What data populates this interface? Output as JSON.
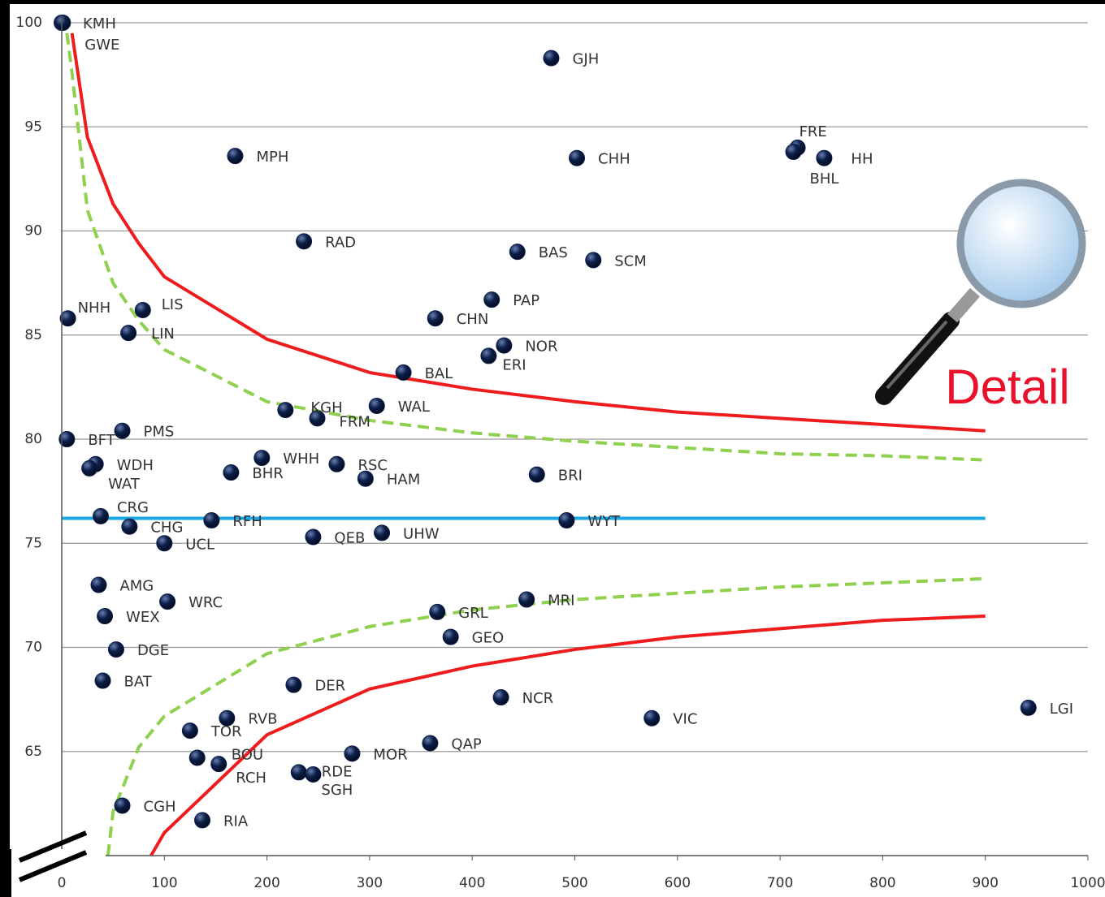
{
  "chart_data": {
    "type": "scatter",
    "annotation": "Detail",
    "xlim": [
      0,
      1000
    ],
    "xticks": [
      0,
      100,
      200,
      300,
      400,
      500,
      600,
      700,
      800,
      900,
      1000
    ],
    "ylim": [
      60,
      100
    ],
    "yticks": [
      65,
      70,
      75,
      80,
      85,
      90,
      95,
      100
    ],
    "grid": true,
    "point_color": "#0c1f4a",
    "labels": [
      "KMH",
      "GWE",
      "GJH",
      "MPH",
      "CHH",
      "FRE",
      "BHL",
      "HH",
      "RAD",
      "BAS",
      "SCM",
      "PAP",
      "NHH",
      "LIS",
      "LIN",
      "CHN",
      "NOR",
      "ERI",
      "BAL",
      "WAL",
      "KGH",
      "FRM",
      "BFT",
      "PMS",
      "WDH",
      "WAT",
      "BHR",
      "WHH",
      "RSC",
      "HAM",
      "BRI",
      "CRG",
      "RFH",
      "CHG",
      "UCL",
      "QEB",
      "UHW",
      "WYT",
      "AMG",
      "WRC",
      "WEX",
      "MRI",
      "GRL",
      "GEO",
      "DGE",
      "BAT",
      "DER",
      "NCR",
      "LGI",
      "VIC",
      "RVB",
      "TOR",
      "BOU",
      "RCH",
      "MOR",
      "QAP",
      "RDE",
      "SGH",
      "CGH",
      "RIA"
    ],
    "x": [
      0,
      1,
      477,
      169,
      502,
      717,
      713,
      743,
      236,
      444,
      518,
      419,
      6,
      79,
      65,
      364,
      431,
      416,
      333,
      307,
      218,
      249,
      5,
      59,
      33,
      27,
      165,
      195,
      268,
      296,
      463,
      38,
      146,
      66,
      100,
      245,
      312,
      492,
      36,
      103,
      42,
      453,
      366,
      379,
      53,
      40,
      226,
      428,
      942,
      575,
      161,
      125,
      132,
      153,
      283,
      359,
      231,
      245,
      59,
      137
    ],
    "values": [
      100,
      100,
      98.3,
      93.6,
      93.5,
      94.0,
      93.8,
      93.5,
      89.5,
      89.0,
      88.6,
      86.7,
      85.8,
      86.2,
      85.1,
      85.8,
      84.5,
      84.0,
      83.2,
      81.6,
      81.4,
      81.0,
      80.0,
      80.4,
      78.8,
      78.6,
      78.4,
      79.1,
      78.8,
      78.1,
      78.3,
      76.3,
      76.1,
      75.8,
      75.0,
      75.3,
      75.5,
      76.1,
      73.0,
      72.2,
      71.5,
      72.3,
      71.7,
      70.5,
      69.9,
      68.4,
      68.2,
      67.6,
      67.1,
      66.6,
      66.6,
      66.0,
      64.7,
      64.4,
      64.9,
      65.4,
      64.0,
      63.9,
      62.4,
      61.7
    ],
    "lines": [
      {
        "color": "#1aa7e6",
        "dashed": false,
        "x": [
          0,
          900
        ],
        "values": [
          76.2,
          76.2
        ]
      },
      {
        "color": "#8fd14f",
        "dashed": true,
        "x": [
          5,
          10,
          25,
          50,
          75,
          100,
          200,
          300,
          400,
          500,
          600,
          700,
          800,
          900
        ],
        "values": [
          99.5,
          97.6,
          91.0,
          87.5,
          85.7,
          84.3,
          81.8,
          80.9,
          80.3,
          79.9,
          79.6,
          79.3,
          79.2,
          79.0
        ]
      },
      {
        "color": "#8fd14f",
        "dashed": true,
        "x": [
          45,
          50,
          75,
          100,
          200,
          300,
          400,
          500,
          600,
          700,
          800,
          900
        ],
        "values": [
          60.0,
          62.1,
          65.2,
          66.7,
          69.7,
          71.0,
          71.8,
          72.3,
          72.6,
          72.9,
          73.1,
          73.3
        ]
      },
      {
        "color": "#ee1c1c",
        "dashed": false,
        "x": [
          10,
          25,
          50,
          75,
          100,
          200,
          300,
          400,
          500,
          600,
          700,
          800,
          900
        ],
        "values": [
          99.5,
          94.5,
          91.3,
          89.4,
          87.8,
          84.8,
          83.2,
          82.4,
          81.8,
          81.3,
          81.0,
          80.7,
          80.4
        ]
      },
      {
        "color": "#ee1c1c",
        "dashed": false,
        "x": [
          87,
          100,
          200,
          300,
          400,
          500,
          600,
          700,
          800,
          900
        ],
        "values": [
          60.0,
          61.1,
          65.8,
          68.0,
          69.1,
          69.9,
          70.5,
          70.9,
          71.3,
          71.5
        ]
      }
    ]
  }
}
